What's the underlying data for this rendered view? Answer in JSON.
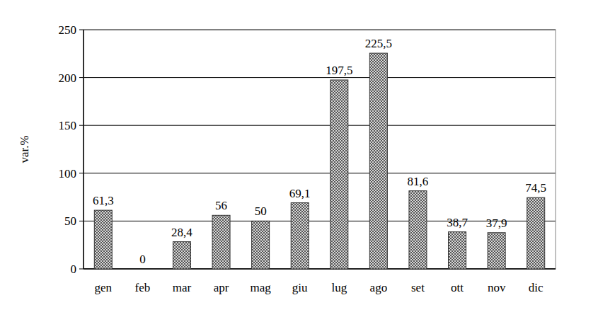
{
  "chart_data": {
    "type": "bar",
    "y_label": "var.%",
    "categories": [
      "gen",
      "feb",
      "mar",
      "apr",
      "mag",
      "giu",
      "lug",
      "ago",
      "set",
      "ott",
      "nov",
      "dic"
    ],
    "values": [
      61.3,
      0,
      28.4,
      56,
      50,
      69.1,
      197.5,
      225.5,
      81.6,
      38.7,
      37.9,
      74.5
    ],
    "value_labels": [
      "61,3",
      "0",
      "28,4",
      "56",
      "50",
      "69,1",
      "197,5",
      "225,5",
      "81,6",
      "38,7",
      "37,9",
      "74,5"
    ],
    "data_labels": true,
    "color": "#555555",
    "ylim": [
      0,
      250
    ],
    "yticks": [
      0,
      50,
      100,
      150,
      200,
      250
    ],
    "grid": true
  }
}
